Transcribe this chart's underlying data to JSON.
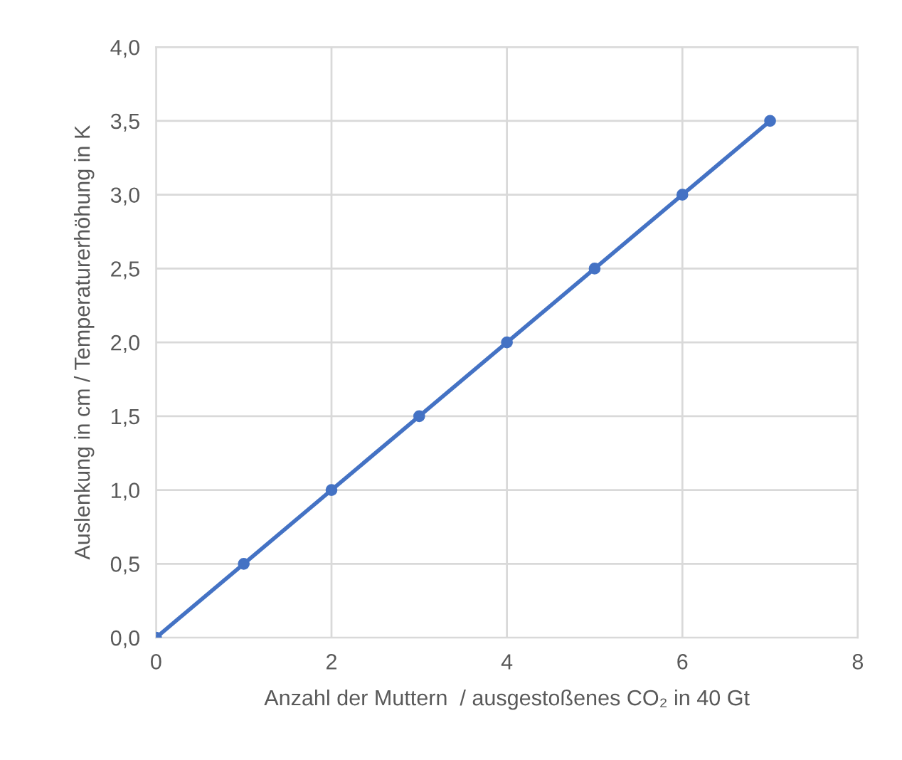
{
  "chart_data": {
    "type": "line",
    "xlabel": "Anzahl der Muttern  / ausgestoßenes CO₂ in 40 Gt",
    "ylabel": "Auslenkung in cm / Temperaturerhöhung in K",
    "x": [
      0,
      1,
      2,
      3,
      4,
      5,
      6,
      7
    ],
    "series": [
      {
        "color": "#4472c4",
        "values": [
          0,
          0.5,
          1.0,
          1.5,
          2.0,
          2.5,
          3.0,
          3.5
        ]
      }
    ],
    "xlim": [
      0,
      8
    ],
    "xticks": [
      0,
      2,
      4,
      6,
      8
    ],
    "ylim": [
      0,
      4
    ],
    "yticks": [
      {
        "value": 0,
        "label": "0,0"
      },
      {
        "value": 0.5,
        "label": "0,5"
      },
      {
        "value": 1,
        "label": "1,0"
      },
      {
        "value": 1.5,
        "label": "1,5"
      },
      {
        "value": 2,
        "label": "2,0"
      },
      {
        "value": 2.5,
        "label": "2,5"
      },
      {
        "value": 3,
        "label": "3,0"
      },
      {
        "value": 3.5,
        "label": "3,5"
      },
      {
        "value": 4,
        "label": "4,0"
      }
    ],
    "grid": true,
    "marker": "circle",
    "line_style": "solid"
  }
}
